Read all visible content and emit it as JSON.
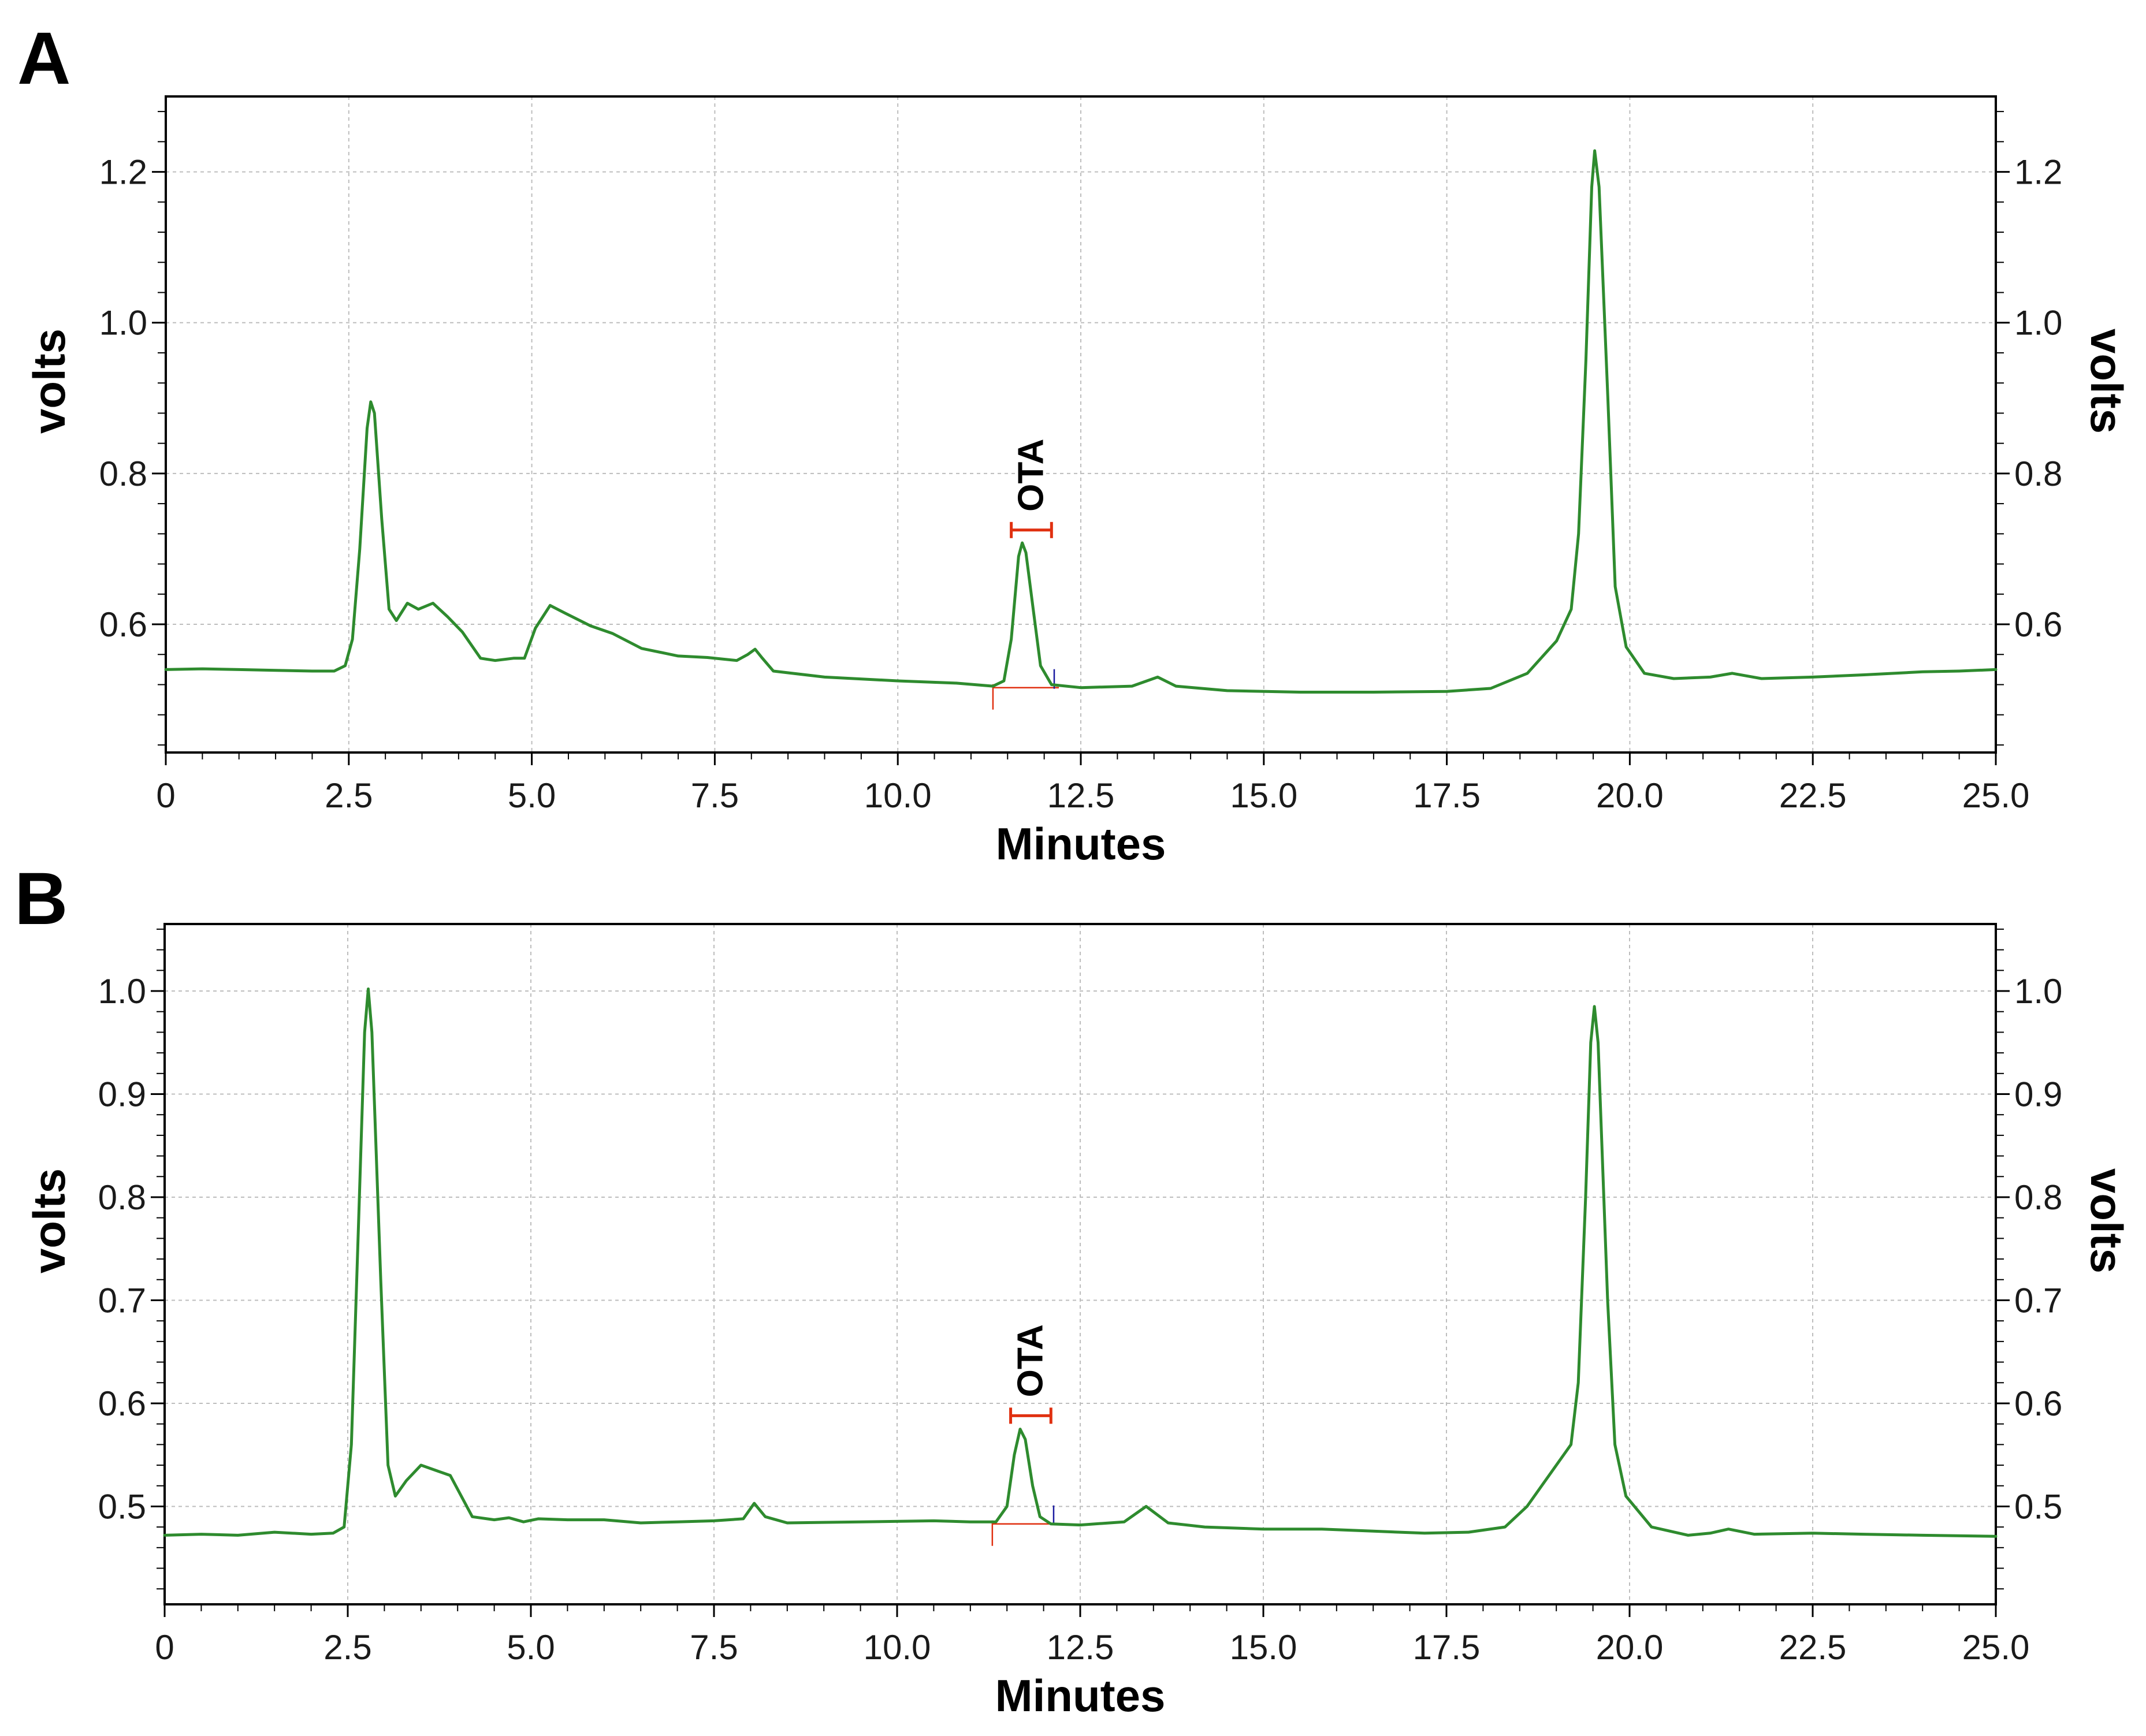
{
  "chart_data": [
    {
      "type": "line",
      "panel_label": "A",
      "xlabel": "Minutes",
      "ylabel": "volts",
      "ylabel_right": "volts",
      "xlim": [
        0,
        25.0
      ],
      "ylim": [
        0.43,
        1.3
      ],
      "grid": true,
      "x_ticks": [
        0,
        2.5,
        5.0,
        7.5,
        10.0,
        12.5,
        15.0,
        17.5,
        20.0,
        22.5,
        25.0
      ],
      "x_tick_labels": [
        "0",
        "2.5",
        "5.0",
        "7.5",
        "10.0",
        "12.5",
        "15.0",
        "17.5",
        "20.0",
        "22.5",
        "25.0"
      ],
      "y_ticks": [
        0.6,
        0.8,
        1.0,
        1.2
      ],
      "y_tick_labels": [
        "0.6",
        "0.8",
        "1.0",
        "1.2"
      ],
      "y_minor_step": 0.04,
      "line_color": "#2e8b2e",
      "annotation": {
        "text": "OTA",
        "x_start": 11.55,
        "x_end": 12.1,
        "y": 0.725,
        "color": "#e03010"
      },
      "integration": {
        "x_start": 11.3,
        "x_end": 12.2,
        "y": 0.516,
        "color": "#e03010",
        "marker_color": "#1a1aa0"
      },
      "series": [
        {
          "values": [
            [
              0,
              0.54
            ],
            [
              0.5,
              0.541
            ],
            [
              1.0,
              0.54
            ],
            [
              1.5,
              0.539
            ],
            [
              2.0,
              0.538
            ],
            [
              2.3,
              0.538
            ],
            [
              2.45,
              0.545
            ],
            [
              2.55,
              0.58
            ],
            [
              2.65,
              0.7
            ],
            [
              2.75,
              0.86
            ],
            [
              2.8,
              0.895
            ],
            [
              2.85,
              0.88
            ],
            [
              2.95,
              0.74
            ],
            [
              3.05,
              0.62
            ],
            [
              3.15,
              0.605
            ],
            [
              3.3,
              0.628
            ],
            [
              3.45,
              0.62
            ],
            [
              3.65,
              0.628
            ],
            [
              3.85,
              0.61
            ],
            [
              4.05,
              0.59
            ],
            [
              4.3,
              0.555
            ],
            [
              4.5,
              0.552
            ],
            [
              4.75,
              0.555
            ],
            [
              4.9,
              0.555
            ],
            [
              5.05,
              0.595
            ],
            [
              5.25,
              0.625
            ],
            [
              5.45,
              0.615
            ],
            [
              5.8,
              0.598
            ],
            [
              6.1,
              0.588
            ],
            [
              6.5,
              0.568
            ],
            [
              7.0,
              0.558
            ],
            [
              7.4,
              0.556
            ],
            [
              7.8,
              0.552
            ],
            [
              7.95,
              0.56
            ],
            [
              8.05,
              0.567
            ],
            [
              8.15,
              0.555
            ],
            [
              8.3,
              0.538
            ],
            [
              9.0,
              0.53
            ],
            [
              10.0,
              0.525
            ],
            [
              10.8,
              0.522
            ],
            [
              11.3,
              0.518
            ],
            [
              11.45,
              0.525
            ],
            [
              11.55,
              0.58
            ],
            [
              11.65,
              0.69
            ],
            [
              11.7,
              0.708
            ],
            [
              11.75,
              0.695
            ],
            [
              11.85,
              0.62
            ],
            [
              11.95,
              0.545
            ],
            [
              12.1,
              0.52
            ],
            [
              12.5,
              0.516
            ],
            [
              13.2,
              0.518
            ],
            [
              13.55,
              0.53
            ],
            [
              13.8,
              0.518
            ],
            [
              14.5,
              0.512
            ],
            [
              15.5,
              0.51
            ],
            [
              16.5,
              0.51
            ],
            [
              17.5,
              0.511
            ],
            [
              18.1,
              0.515
            ],
            [
              18.6,
              0.535
            ],
            [
              19.0,
              0.578
            ],
            [
              19.2,
              0.62
            ],
            [
              19.3,
              0.72
            ],
            [
              19.4,
              0.95
            ],
            [
              19.48,
              1.18
            ],
            [
              19.52,
              1.228
            ],
            [
              19.58,
              1.18
            ],
            [
              19.7,
              0.9
            ],
            [
              19.8,
              0.65
            ],
            [
              19.95,
              0.57
            ],
            [
              20.2,
              0.535
            ],
            [
              20.6,
              0.528
            ],
            [
              21.1,
              0.53
            ],
            [
              21.4,
              0.535
            ],
            [
              21.8,
              0.528
            ],
            [
              22.5,
              0.53
            ],
            [
              23.2,
              0.533
            ],
            [
              24.0,
              0.537
            ],
            [
              24.5,
              0.538
            ],
            [
              25.0,
              0.54
            ]
          ]
        }
      ]
    },
    {
      "type": "line",
      "panel_label": "B",
      "xlabel": "Minutes",
      "ylabel": "volts",
      "ylabel_right": "volts",
      "xlim": [
        0,
        25.0
      ],
      "ylim": [
        0.405,
        1.065
      ],
      "grid": true,
      "x_ticks": [
        0,
        2.5,
        5.0,
        7.5,
        10.0,
        12.5,
        15.0,
        17.5,
        20.0,
        22.5,
        25.0
      ],
      "x_tick_labels": [
        "0",
        "2.5",
        "5.0",
        "7.5",
        "10.0",
        "12.5",
        "15.0",
        "17.5",
        "20.0",
        "22.5",
        "25.0"
      ],
      "y_ticks": [
        0.5,
        0.6,
        0.7,
        0.8,
        0.9,
        1.0
      ],
      "y_tick_labels": [
        "0.5",
        "0.6",
        "0.7",
        "0.8",
        "0.9",
        "1.0"
      ],
      "y_minor_step": 0.02,
      "line_color": "#2e8b2e",
      "annotation": {
        "text": "OTA",
        "x_start": 11.55,
        "x_end": 12.1,
        "y": 0.588,
        "color": "#e03010"
      },
      "integration": {
        "x_start": 11.3,
        "x_end": 12.2,
        "y": 0.483,
        "color": "#e03010",
        "marker_color": "#1a1aa0"
      },
      "series": [
        {
          "values": [
            [
              0,
              0.472
            ],
            [
              0.5,
              0.473
            ],
            [
              1.0,
              0.472
            ],
            [
              1.5,
              0.475
            ],
            [
              2.0,
              0.473
            ],
            [
              2.3,
              0.474
            ],
            [
              2.45,
              0.48
            ],
            [
              2.55,
              0.56
            ],
            [
              2.65,
              0.78
            ],
            [
              2.73,
              0.96
            ],
            [
              2.78,
              1.002
            ],
            [
              2.83,
              0.96
            ],
            [
              2.95,
              0.72
            ],
            [
              3.05,
              0.54
            ],
            [
              3.15,
              0.51
            ],
            [
              3.3,
              0.525
            ],
            [
              3.5,
              0.54
            ],
            [
              3.7,
              0.535
            ],
            [
              3.9,
              0.53
            ],
            [
              4.05,
              0.51
            ],
            [
              4.2,
              0.49
            ],
            [
              4.5,
              0.487
            ],
            [
              4.7,
              0.489
            ],
            [
              4.9,
              0.485
            ],
            [
              5.1,
              0.488
            ],
            [
              5.5,
              0.487
            ],
            [
              6.0,
              0.487
            ],
            [
              6.5,
              0.484
            ],
            [
              7.0,
              0.485
            ],
            [
              7.5,
              0.486
            ],
            [
              7.9,
              0.488
            ],
            [
              8.05,
              0.503
            ],
            [
              8.2,
              0.49
            ],
            [
              8.5,
              0.484
            ],
            [
              9.5,
              0.485
            ],
            [
              10.5,
              0.486
            ],
            [
              11.0,
              0.485
            ],
            [
              11.35,
              0.485
            ],
            [
              11.5,
              0.5
            ],
            [
              11.6,
              0.55
            ],
            [
              11.68,
              0.575
            ],
            [
              11.75,
              0.565
            ],
            [
              11.85,
              0.52
            ],
            [
              11.95,
              0.49
            ],
            [
              12.1,
              0.483
            ],
            [
              12.5,
              0.482
            ],
            [
              13.1,
              0.485
            ],
            [
              13.4,
              0.5
            ],
            [
              13.7,
              0.484
            ],
            [
              14.2,
              0.48
            ],
            [
              15.0,
              0.478
            ],
            [
              15.8,
              0.478
            ],
            [
              16.5,
              0.476
            ],
            [
              17.2,
              0.474
            ],
            [
              17.8,
              0.475
            ],
            [
              18.3,
              0.48
            ],
            [
              18.6,
              0.5
            ],
            [
              18.9,
              0.53
            ],
            [
              19.2,
              0.56
            ],
            [
              19.3,
              0.62
            ],
            [
              19.4,
              0.8
            ],
            [
              19.47,
              0.95
            ],
            [
              19.52,
              0.985
            ],
            [
              19.57,
              0.95
            ],
            [
              19.7,
              0.7
            ],
            [
              19.8,
              0.56
            ],
            [
              19.95,
              0.51
            ],
            [
              20.3,
              0.48
            ],
            [
              20.8,
              0.472
            ],
            [
              21.1,
              0.474
            ],
            [
              21.35,
              0.478
            ],
            [
              21.7,
              0.473
            ],
            [
              22.5,
              0.474
            ],
            [
              23.2,
              0.473
            ],
            [
              24.0,
              0.472
            ],
            [
              25.0,
              0.471
            ]
          ]
        }
      ]
    }
  ]
}
